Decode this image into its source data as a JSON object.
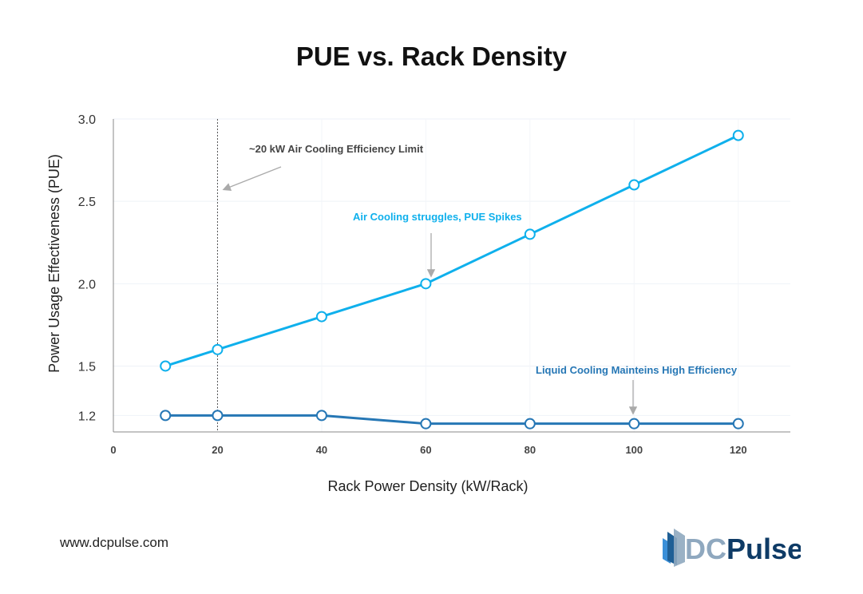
{
  "chart_data": {
    "type": "line",
    "title": "PUE vs. Rack Density",
    "xlabel": "Rack Power Density (kW/Rack)",
    "ylabel": "Power Usage Effectiveness (PUE)",
    "xlim": [
      0,
      130
    ],
    "ylim": [
      1.1,
      3.0
    ],
    "x_ticks": [
      0,
      20,
      40,
      60,
      80,
      100,
      120
    ],
    "y_ticks": [
      1.2,
      1.5,
      2.0,
      2.5,
      3.0
    ],
    "y_tick_labels": [
      "1.2",
      "1.5",
      "2.0",
      "2.5",
      "3.0"
    ],
    "grid": true,
    "x": [
      10,
      20,
      40,
      60,
      80,
      100,
      120
    ],
    "series": [
      {
        "values": [
          1.5,
          1.6,
          1.8,
          2.0,
          2.3,
          2.6,
          2.9
        ],
        "color": "#0fb0ec"
      },
      {
        "values": [
          1.2,
          1.2,
          1.2,
          1.15,
          1.15,
          1.15,
          1.15
        ],
        "color": "#2677b5"
      }
    ],
    "annotations": [
      {
        "text": "~20 kW Air Cooling Efficiency Limit",
        "color": "#444444",
        "x": 20,
        "y": 2.6
      },
      {
        "text": "Air Cooling struggles, PUE Spikes",
        "color": "#0fb0ec",
        "x": 60,
        "y": 2.0
      },
      {
        "text": "Liquid Cooling Mainteins High Efficiency",
        "color": "#2677b5",
        "x": 100,
        "y": 1.15
      }
    ],
    "reference_line": {
      "x": 20,
      "style": "dotted"
    }
  },
  "footer": {
    "website": "www.dcpulse.com",
    "logo_text": "DCPulse"
  }
}
